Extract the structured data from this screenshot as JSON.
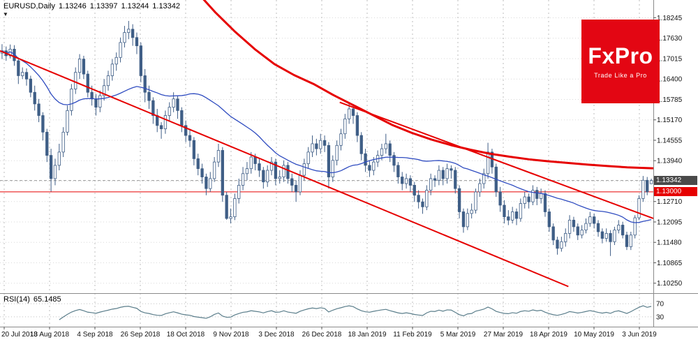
{
  "header": {
    "symbol_period": "EURUSD,Daily",
    "open": "1.13246",
    "high": "1.13397",
    "low": "1.13244",
    "close": "1.13342"
  },
  "indicator": {
    "label": "RSI(14)",
    "value": "65.1485"
  },
  "price_tags": {
    "current": {
      "text": "1.13342",
      "bg": "#4a4a4a"
    },
    "key_level": {
      "text": "1.13000",
      "bg": "#e60000"
    }
  },
  "logo": {
    "brand": "FxPro",
    "tagline": "Trade Like a Pro",
    "bg_color": "#e30613",
    "text_color": "#ffffff"
  },
  "colors": {
    "background": "#ffffff",
    "candle": "#3f5e86",
    "candle_up_fill": "#ffffff",
    "grid_vertical": "#bdbdbd",
    "grid_horizontal": "#d8d8d8",
    "separator": "#8a8a8a",
    "axis_text": "#111111",
    "accent_red": "#e60000",
    "ma_blue": "#2f4cc0",
    "rsi_line": "#5a7d8a",
    "bid_line": "#999999"
  },
  "chart_data": {
    "type": "candlestick",
    "symbol": "EURUSD",
    "timeframe": "Daily",
    "price_axis": {
      "min": 1.0995,
      "max": 1.1878
    },
    "y_ticks": [
      1.18245,
      1.1763,
      1.17015,
      1.164,
      1.15785,
      1.1517,
      1.14555,
      1.1394,
      1.13325,
      1.1271,
      1.12095,
      1.1148,
      1.10865,
      1.1025
    ],
    "x_labels": [
      "20 Jul 2018",
      "13 Aug 2018",
      "4 Sep 2018",
      "26 Sep 2018",
      "18 Oct 2018",
      "9 Nov 2018",
      "3 Dec 2018",
      "26 Dec 2018",
      "18 Jan 2019",
      "11 Feb 2019",
      "5 Mar 2019",
      "27 Mar 2019",
      "18 Apr 2019",
      "10 May 2019",
      "3 Jun 2019"
    ],
    "ohlc": [
      [
        1.1718,
        1.1745,
        1.17,
        1.1725
      ],
      [
        1.1725,
        1.1738,
        1.1695,
        1.171
      ],
      [
        1.171,
        1.1744,
        1.1702,
        1.173
      ],
      [
        1.173,
        1.1742,
        1.168,
        1.1695
      ],
      [
        1.1695,
        1.1705,
        1.1625,
        1.165
      ],
      [
        1.165,
        1.1675,
        1.164,
        1.166
      ],
      [
        1.166,
        1.1672,
        1.162,
        1.164
      ],
      [
        1.164,
        1.165,
        1.1585,
        1.16
      ],
      [
        1.16,
        1.162,
        1.1545,
        1.1565
      ],
      [
        1.1565,
        1.158,
        1.151,
        1.153
      ],
      [
        1.153,
        1.154,
        1.1455,
        1.148
      ],
      [
        1.148,
        1.149,
        1.139,
        1.141
      ],
      [
        1.141,
        1.143,
        1.1301,
        1.134
      ],
      [
        1.134,
        1.14,
        1.132,
        1.138
      ],
      [
        1.138,
        1.1445,
        1.1365,
        1.142
      ],
      [
        1.142,
        1.1495,
        1.1405,
        1.148
      ],
      [
        1.148,
        1.156,
        1.147,
        1.1545
      ],
      [
        1.1545,
        1.1625,
        1.153,
        1.161
      ],
      [
        1.161,
        1.1675,
        1.1595,
        1.166
      ],
      [
        1.166,
        1.1715,
        1.164,
        1.17
      ],
      [
        1.17,
        1.171,
        1.164,
        1.1655
      ],
      [
        1.1655,
        1.1665,
        1.1585,
        1.16
      ],
      [
        1.16,
        1.162,
        1.156,
        1.158
      ],
      [
        1.158,
        1.1595,
        1.153,
        1.1555
      ],
      [
        1.1555,
        1.1605,
        1.154,
        1.159
      ],
      [
        1.159,
        1.164,
        1.1575,
        1.162
      ],
      [
        1.162,
        1.1665,
        1.1605,
        1.165
      ],
      [
        1.165,
        1.17,
        1.1635,
        1.1685
      ],
      [
        1.1685,
        1.172,
        1.1665,
        1.1705
      ],
      [
        1.1705,
        1.1765,
        1.169,
        1.175
      ],
      [
        1.175,
        1.18,
        1.1735,
        1.178
      ],
      [
        1.178,
        1.1815,
        1.176,
        1.179
      ],
      [
        1.179,
        1.1805,
        1.174,
        1.1765
      ],
      [
        1.1765,
        1.178,
        1.1715,
        1.174
      ],
      [
        1.174,
        1.175,
        1.163,
        1.165
      ],
      [
        1.165,
        1.167,
        1.157,
        1.16
      ],
      [
        1.16,
        1.162,
        1.155,
        1.1575
      ],
      [
        1.1575,
        1.1585,
        1.1505,
        1.153
      ],
      [
        1.153,
        1.155,
        1.148,
        1.15
      ],
      [
        1.15,
        1.151,
        1.146,
        1.149
      ],
      [
        1.149,
        1.1545,
        1.1475,
        1.153
      ],
      [
        1.153,
        1.157,
        1.1515,
        1.1555
      ],
      [
        1.1555,
        1.16,
        1.154,
        1.158
      ],
      [
        1.158,
        1.159,
        1.152,
        1.1545
      ],
      [
        1.1545,
        1.1555,
        1.148,
        1.15
      ],
      [
        1.15,
        1.1515,
        1.145,
        1.147
      ],
      [
        1.147,
        1.149,
        1.1435,
        1.1455
      ],
      [
        1.1455,
        1.1465,
        1.138,
        1.14
      ],
      [
        1.14,
        1.1415,
        1.135,
        1.137
      ],
      [
        1.137,
        1.1385,
        1.1325,
        1.1345
      ],
      [
        1.1345,
        1.1355,
        1.129,
        1.131
      ],
      [
        1.131,
        1.136,
        1.13,
        1.134
      ],
      [
        1.134,
        1.1405,
        1.133,
        1.139
      ],
      [
        1.139,
        1.1445,
        1.1375,
        1.1425
      ],
      [
        1.1425,
        1.1435,
        1.127,
        1.129
      ],
      [
        1.129,
        1.13,
        1.1216,
        1.122
      ],
      [
        1.122,
        1.125,
        1.1205,
        1.1225
      ],
      [
        1.1225,
        1.1295,
        1.1215,
        1.128
      ],
      [
        1.128,
        1.134,
        1.1265,
        1.132
      ],
      [
        1.132,
        1.1375,
        1.1305,
        1.1355
      ],
      [
        1.1355,
        1.139,
        1.1335,
        1.137
      ],
      [
        1.137,
        1.142,
        1.1355,
        1.1405
      ],
      [
        1.1405,
        1.1415,
        1.1365,
        1.1385
      ],
      [
        1.1385,
        1.14,
        1.1345,
        1.1365
      ],
      [
        1.1365,
        1.1375,
        1.131,
        1.133
      ],
      [
        1.133,
        1.138,
        1.1315,
        1.1365
      ],
      [
        1.1365,
        1.1405,
        1.135,
        1.139
      ],
      [
        1.139,
        1.14,
        1.132,
        1.134
      ],
      [
        1.134,
        1.1365,
        1.1325,
        1.1345
      ],
      [
        1.1345,
        1.1395,
        1.133,
        1.138
      ],
      [
        1.138,
        1.139,
        1.1325,
        1.134
      ],
      [
        1.134,
        1.1355,
        1.13,
        1.132
      ],
      [
        1.132,
        1.1335,
        1.127,
        1.13
      ],
      [
        1.13,
        1.1365,
        1.129,
        1.135
      ],
      [
        1.135,
        1.14,
        1.1335,
        1.1385
      ],
      [
        1.1385,
        1.1435,
        1.137,
        1.142
      ],
      [
        1.142,
        1.147,
        1.1405,
        1.1445
      ],
      [
        1.1445,
        1.146,
        1.141,
        1.143
      ],
      [
        1.143,
        1.1475,
        1.1415,
        1.1455
      ],
      [
        1.1455,
        1.147,
        1.142,
        1.144
      ],
      [
        1.144,
        1.145,
        1.131,
        1.1345
      ],
      [
        1.1345,
        1.141,
        1.133,
        1.1395
      ],
      [
        1.1395,
        1.1455,
        1.138,
        1.144
      ],
      [
        1.144,
        1.149,
        1.1425,
        1.1475
      ],
      [
        1.1475,
        1.1535,
        1.146,
        1.152
      ],
      [
        1.152,
        1.157,
        1.1505,
        1.155
      ],
      [
        1.155,
        1.1565,
        1.1505,
        1.153
      ],
      [
        1.153,
        1.154,
        1.145,
        1.147
      ],
      [
        1.147,
        1.148,
        1.1395,
        1.1415
      ],
      [
        1.1415,
        1.143,
        1.136,
        1.138
      ],
      [
        1.138,
        1.1395,
        1.1345,
        1.1365
      ],
      [
        1.1365,
        1.1405,
        1.135,
        1.139
      ],
      [
        1.139,
        1.1425,
        1.1375,
        1.141
      ],
      [
        1.141,
        1.1445,
        1.1395,
        1.143
      ],
      [
        1.143,
        1.1475,
        1.1415,
        1.1445
      ],
      [
        1.1445,
        1.1455,
        1.139,
        1.141
      ],
      [
        1.141,
        1.142,
        1.136,
        1.138
      ],
      [
        1.138,
        1.139,
        1.1325,
        1.1345
      ],
      [
        1.1345,
        1.136,
        1.1305,
        1.1325
      ],
      [
        1.1325,
        1.1355,
        1.131,
        1.134
      ],
      [
        1.134,
        1.135,
        1.13,
        1.132
      ],
      [
        1.132,
        1.133,
        1.127,
        1.129
      ],
      [
        1.129,
        1.1305,
        1.125,
        1.127
      ],
      [
        1.127,
        1.128,
        1.1234,
        1.1255
      ],
      [
        1.1255,
        1.132,
        1.1245,
        1.1305
      ],
      [
        1.1305,
        1.1355,
        1.129,
        1.134
      ],
      [
        1.134,
        1.135,
        1.1315,
        1.1335
      ],
      [
        1.1335,
        1.138,
        1.132,
        1.1365
      ],
      [
        1.1365,
        1.1375,
        1.132,
        1.134
      ],
      [
        1.134,
        1.1385,
        1.1325,
        1.137
      ],
      [
        1.137,
        1.138,
        1.134,
        1.1365
      ],
      [
        1.1365,
        1.1375,
        1.1295,
        1.131
      ],
      [
        1.131,
        1.132,
        1.122,
        1.124
      ],
      [
        1.124,
        1.125,
        1.1177,
        1.1195
      ],
      [
        1.1195,
        1.125,
        1.1185,
        1.1235
      ],
      [
        1.1235,
        1.1265,
        1.122,
        1.1245
      ],
      [
        1.1245,
        1.131,
        1.1235,
        1.13
      ],
      [
        1.13,
        1.134,
        1.1285,
        1.1325
      ],
      [
        1.1325,
        1.137,
        1.131,
        1.1355
      ],
      [
        1.1355,
        1.1448,
        1.134,
        1.142
      ],
      [
        1.142,
        1.143,
        1.1355,
        1.1375
      ],
      [
        1.1375,
        1.1385,
        1.1285,
        1.13
      ],
      [
        1.13,
        1.1315,
        1.124,
        1.126
      ],
      [
        1.126,
        1.1275,
        1.1205,
        1.1225
      ],
      [
        1.1225,
        1.1245,
        1.12,
        1.1215
      ],
      [
        1.1215,
        1.1255,
        1.1205,
        1.124
      ],
      [
        1.124,
        1.125,
        1.12,
        1.122
      ],
      [
        1.122,
        1.128,
        1.121,
        1.1265
      ],
      [
        1.1265,
        1.13,
        1.125,
        1.1285
      ],
      [
        1.1285,
        1.1295,
        1.125,
        1.127
      ],
      [
        1.127,
        1.132,
        1.126,
        1.1305
      ],
      [
        1.1305,
        1.1315,
        1.126,
        1.128
      ],
      [
        1.128,
        1.131,
        1.1265,
        1.1295
      ],
      [
        1.1295,
        1.1305,
        1.1225,
        1.124
      ],
      [
        1.124,
        1.125,
        1.118,
        1.1195
      ],
      [
        1.1195,
        1.1205,
        1.114,
        1.1155
      ],
      [
        1.1155,
        1.1165,
        1.1111,
        1.113
      ],
      [
        1.113,
        1.1165,
        1.112,
        1.115
      ],
      [
        1.115,
        1.119,
        1.1135,
        1.1175
      ],
      [
        1.1175,
        1.123,
        1.116,
        1.1215
      ],
      [
        1.1215,
        1.1225,
        1.118,
        1.1195
      ],
      [
        1.1195,
        1.1205,
        1.1155,
        1.117
      ],
      [
        1.117,
        1.12,
        1.116,
        1.1185
      ],
      [
        1.1185,
        1.122,
        1.1175,
        1.1205
      ],
      [
        1.1205,
        1.124,
        1.1195,
        1.1225
      ],
      [
        1.1225,
        1.1235,
        1.119,
        1.1205
      ],
      [
        1.1205,
        1.1215,
        1.1165,
        1.118
      ],
      [
        1.118,
        1.119,
        1.1145,
        1.116
      ],
      [
        1.116,
        1.119,
        1.115,
        1.1175
      ],
      [
        1.1175,
        1.1185,
        1.1107,
        1.115
      ],
      [
        1.115,
        1.1195,
        1.114,
        1.1185
      ],
      [
        1.1185,
        1.1215,
        1.1175,
        1.12
      ],
      [
        1.12,
        1.121,
        1.116,
        1.117
      ],
      [
        1.117,
        1.118,
        1.1125,
        1.1135
      ],
      [
        1.1135,
        1.118,
        1.1125,
        1.117
      ],
      [
        1.117,
        1.123,
        1.116,
        1.1222
      ],
      [
        1.1222,
        1.129,
        1.1215,
        1.128
      ],
      [
        1.128,
        1.1348,
        1.127,
        1.1335
      ],
      [
        1.1335,
        1.1345,
        1.129,
        1.13
      ],
      [
        1.13246,
        1.13397,
        1.13244,
        1.13342
      ]
    ],
    "overlays": {
      "sma": {
        "period": 34,
        "color": "#2f4cc0"
      },
      "trendlines": [
        {
          "name": "main-downtrend-line",
          "from": [
            0.0,
            1.1725
          ],
          "to": [
            0.87,
            1.1015
          ],
          "color": "#e60000",
          "width": 2
        },
        {
          "name": "upper-channel-line",
          "from": [
            0.52,
            1.157
          ],
          "to": [
            1.0,
            1.122
          ],
          "color": "#e60000",
          "width": 2
        }
      ],
      "long_term_ma": {
        "color": "#e60000",
        "width": 3,
        "points": [
          [
            0.3,
            1.1905
          ],
          [
            0.33,
            1.184
          ],
          [
            0.36,
            1.1782
          ],
          [
            0.39,
            1.173
          ],
          [
            0.42,
            1.1685
          ],
          [
            0.45,
            1.1652
          ],
          [
            0.48,
            1.1625
          ],
          [
            0.51,
            1.1592
          ],
          [
            0.54,
            1.1562
          ],
          [
            0.57,
            1.1532
          ],
          [
            0.6,
            1.1502
          ],
          [
            0.63,
            1.1478
          ],
          [
            0.66,
            1.1458
          ],
          [
            0.69,
            1.1441
          ],
          [
            0.72,
            1.1427
          ],
          [
            0.75,
            1.1415
          ],
          [
            0.78,
            1.1406
          ],
          [
            0.81,
            1.1398
          ],
          [
            0.84,
            1.1392
          ],
          [
            0.87,
            1.1387
          ],
          [
            0.9,
            1.1382
          ],
          [
            0.93,
            1.1378
          ],
          [
            0.96,
            1.1374
          ],
          [
            1.0,
            1.1371
          ]
        ]
      },
      "hline": {
        "price": 1.13,
        "color": "#e60000"
      },
      "bid_line": {
        "price": 1.13342,
        "color": "#999999"
      }
    },
    "rsi": {
      "period": 14,
      "color": "#5a7d8a",
      "levels": [
        70,
        30
      ],
      "range": [
        0,
        100
      ],
      "last_value": 65.1485
    }
  }
}
